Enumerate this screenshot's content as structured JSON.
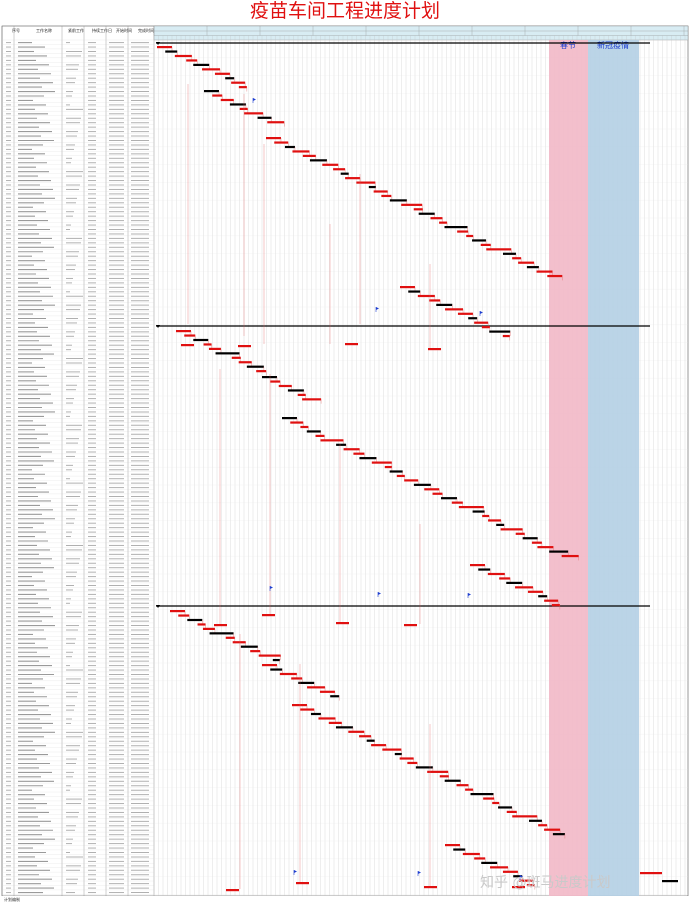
{
  "title": "疫苗车间工程进度计划",
  "columns": [
    "序号",
    "工作名称",
    "紧前工作",
    "持续工作日",
    "开始时间",
    "完成时间"
  ],
  "band_labels": {
    "spring": "春节",
    "covid": "新冠疫情"
  },
  "watermark": "知乎 @斑马进度计划",
  "footer": "计划编制",
  "colors": {
    "title": "#e01010",
    "critical": "#e01010",
    "normal": "#000000",
    "link": "#e06060",
    "grid": "#b8b8b8",
    "spring_band": "#f2b8c6",
    "covid_band": "#b4cfe4",
    "timescale_bg": "#d8ecf3",
    "band_text": "#1f3fd0"
  },
  "phases": [
    {
      "label": "总施工进度"
    },
    {
      "label": "A1栋"
    },
    {
      "label": "A2栋"
    }
  ],
  "chart_data": {
    "type": "gantt",
    "title": "疫苗车间工程进度计划",
    "note": "Dense Gantt chart; row labels are too small to read in the screenshot. Task bars are shown as critical (red) or normal (black)."
  }
}
